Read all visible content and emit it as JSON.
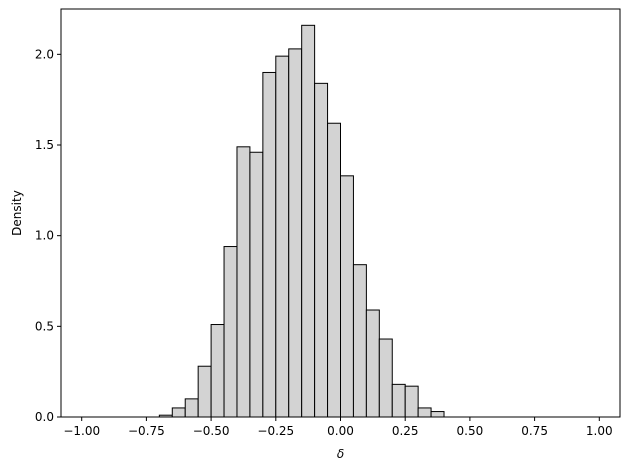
{
  "chart_data": {
    "type": "histogram",
    "xlabel": "δ",
    "ylabel": "Density",
    "xlim": [
      -1.08,
      1.08
    ],
    "ylim": [
      0,
      2.25
    ],
    "x_ticks": [
      -1.0,
      -0.75,
      -0.5,
      -0.25,
      0.0,
      0.25,
      0.5,
      0.75,
      1.0
    ],
    "x_tick_labels": [
      "−1.00",
      "−0.75",
      "−0.50",
      "−0.25",
      "0.00",
      "0.25",
      "0.50",
      "0.75",
      "1.00"
    ],
    "y_ticks": [
      0.0,
      0.5,
      1.0,
      1.5,
      2.0
    ],
    "y_tick_labels": [
      "0.0",
      "0.5",
      "1.0",
      "1.5",
      "2.0"
    ],
    "bin_edges": [
      -0.7,
      -0.65,
      -0.6,
      -0.55,
      -0.5,
      -0.45,
      -0.4,
      -0.35,
      -0.3,
      -0.25,
      -0.2,
      -0.15,
      -0.1,
      -0.05,
      0.0,
      0.05,
      0.1,
      0.15,
      0.2,
      0.25,
      0.3,
      0.35,
      0.4
    ],
    "values": [
      0.01,
      0.05,
      0.1,
      0.28,
      0.51,
      0.94,
      1.49,
      1.46,
      1.9,
      1.99,
      2.03,
      2.16,
      1.84,
      1.62,
      1.33,
      0.84,
      0.59,
      0.43,
      0.18,
      0.17,
      0.05,
      0.03
    ],
    "bar_color": "#d3d3d3",
    "edge_color": "#000000",
    "grid": false
  }
}
